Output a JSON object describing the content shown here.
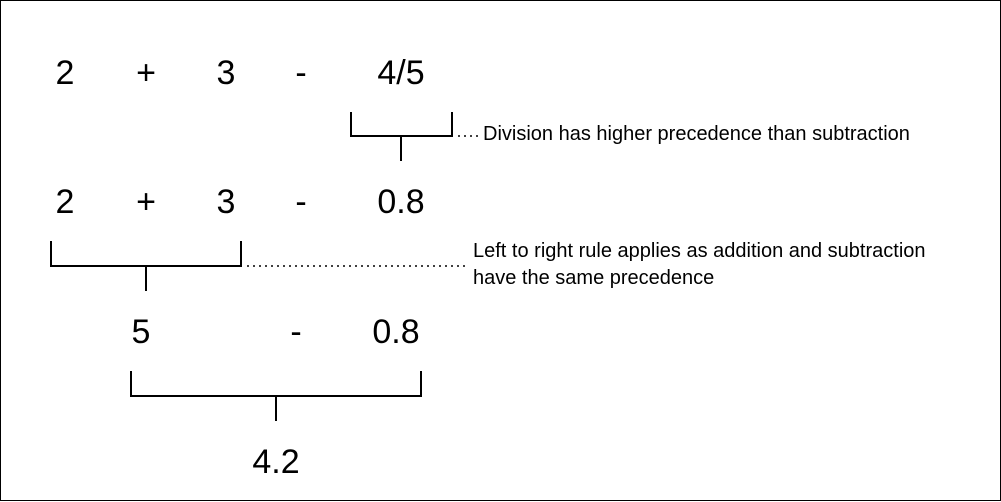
{
  "steps": [
    {
      "tokens": [
        "2",
        "+",
        "3",
        "-",
        "4/5"
      ]
    },
    {
      "tokens": [
        "2",
        "+",
        "3",
        "-",
        "0.8"
      ]
    },
    {
      "tokens": [
        "5",
        "-",
        "0.8"
      ]
    },
    {
      "tokens": [
        "4.2"
      ]
    }
  ],
  "annotations": {
    "division": "Division has higher precedence than subtraction",
    "left_to_right_line1": "Left to right rule applies as addition and subtraction",
    "left_to_right_line2": "have the same precedence"
  },
  "colors": {
    "ink": "#000000",
    "background": "#ffffff"
  }
}
